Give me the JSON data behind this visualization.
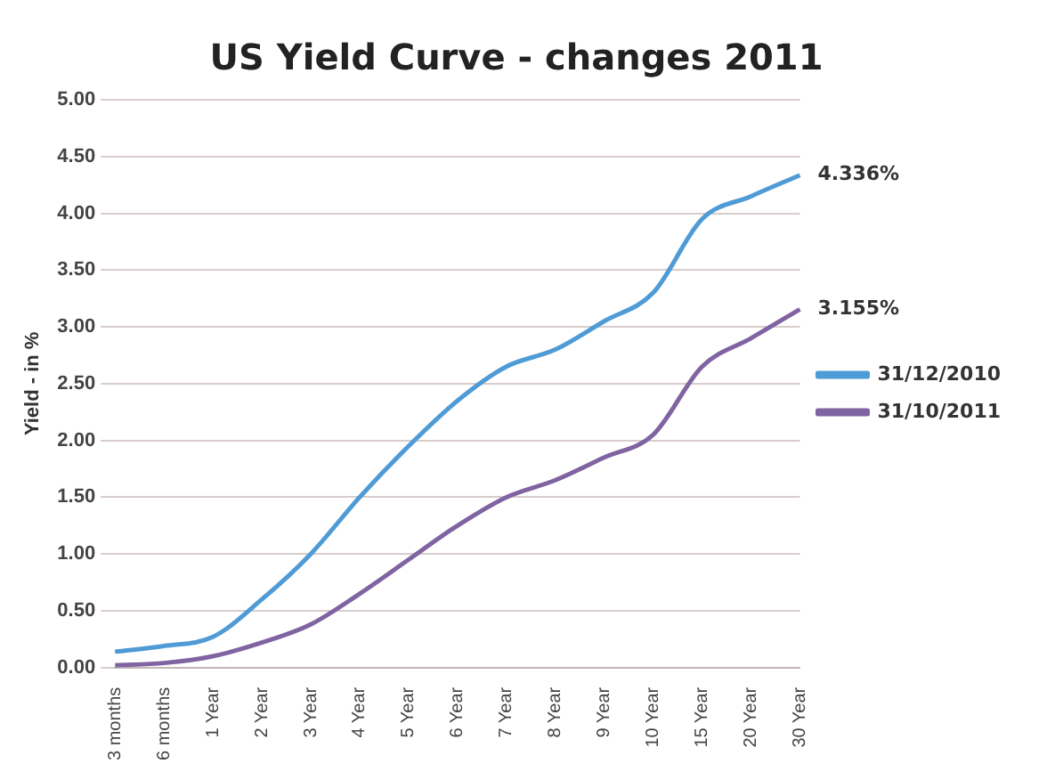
{
  "chart_data": {
    "type": "line",
    "title": "US Yield Curve - changes 2011",
    "ylabel": "Yield - in %",
    "categories": [
      "3 months",
      "6 months",
      "1 Year",
      "2 Year",
      "3 Year",
      "4 Year",
      "5 Year",
      "6 Year",
      "7 Year",
      "8 Year",
      "9 Year",
      "10 Year",
      "15 Year",
      "20 Year",
      "30 Year"
    ],
    "series": [
      {
        "name": "31/12/2010",
        "color": "#4f9bd6",
        "values": [
          0.14,
          0.19,
          0.27,
          0.6,
          1.0,
          1.5,
          1.95,
          2.35,
          2.65,
          2.8,
          3.05,
          3.3,
          3.95,
          4.15,
          4.336
        ],
        "value_labels": [
          null,
          null,
          null,
          null,
          null,
          null,
          null,
          null,
          null,
          null,
          null,
          null,
          null,
          null,
          "4.336%"
        ]
      },
      {
        "name": "31/10/2011",
        "color": "#8064a2",
        "values": [
          0.02,
          0.04,
          0.1,
          0.22,
          0.38,
          0.65,
          0.95,
          1.25,
          1.5,
          1.65,
          1.85,
          2.05,
          2.65,
          2.9,
          3.155
        ],
        "value_labels": [
          null,
          null,
          null,
          null,
          null,
          null,
          null,
          null,
          null,
          null,
          null,
          null,
          null,
          null,
          "3.155%"
        ]
      }
    ],
    "ylim": [
      0,
      5
    ],
    "yticks": [
      {
        "value": 0,
        "label": "0.00"
      },
      {
        "value": 0.5,
        "label": "0.50"
      },
      {
        "value": 1,
        "label": "1.00"
      },
      {
        "value": 1.5,
        "label": "1.50"
      },
      {
        "value": 2,
        "label": "2.00"
      },
      {
        "value": 2.5,
        "label": "2.50"
      },
      {
        "value": 3,
        "label": "3.00"
      },
      {
        "value": 3.5,
        "label": "3.50"
      },
      {
        "value": 4,
        "label": "4.00"
      },
      {
        "value": 4.5,
        "label": "4.50"
      },
      {
        "value": 5,
        "label": "5.00"
      }
    ],
    "grid": "y",
    "legend": "right",
    "marker": "none",
    "line_style": "solid"
  }
}
